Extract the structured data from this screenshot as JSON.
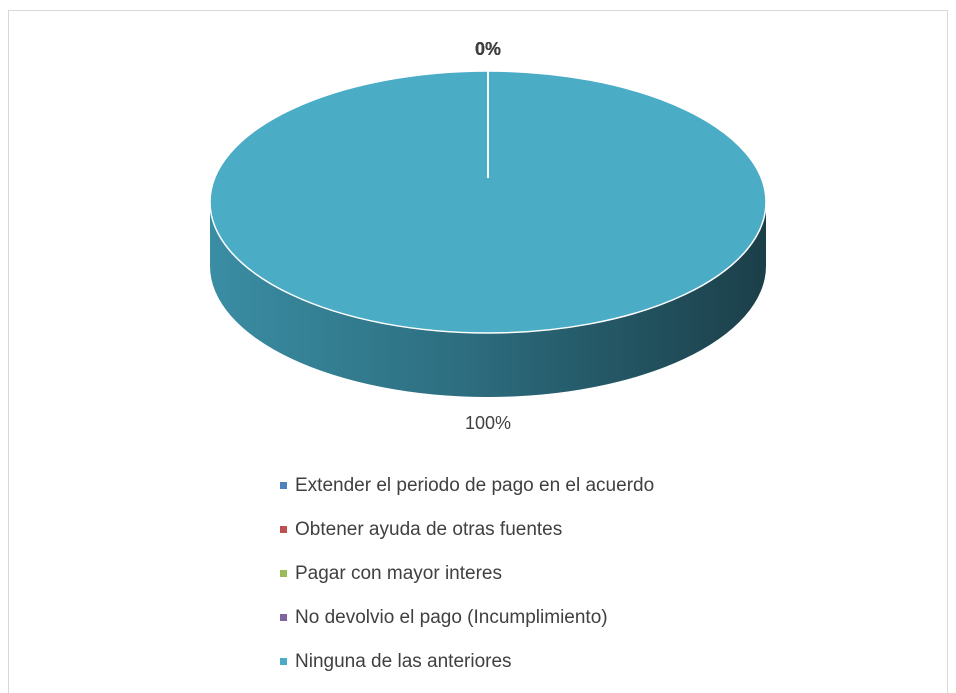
{
  "chart_data": {
    "type": "pie",
    "categories": [
      "Extender el periodo de pago en el acuerdo",
      "Obtener ayuda de otras fuentes",
      "Pagar con mayor interes",
      "No devolvio el pago (Incumplimiento)",
      "Ninguna de las anteriores"
    ],
    "values": [
      0,
      0,
      0,
      0,
      100
    ],
    "value_labels": [
      "0%",
      "0%",
      "0%",
      "0%",
      "100%"
    ],
    "colors": [
      "#4f81bd",
      "#c0504d",
      "#9bbb59",
      "#8064a2",
      "#4bacc6"
    ],
    "legend": "bottom"
  }
}
